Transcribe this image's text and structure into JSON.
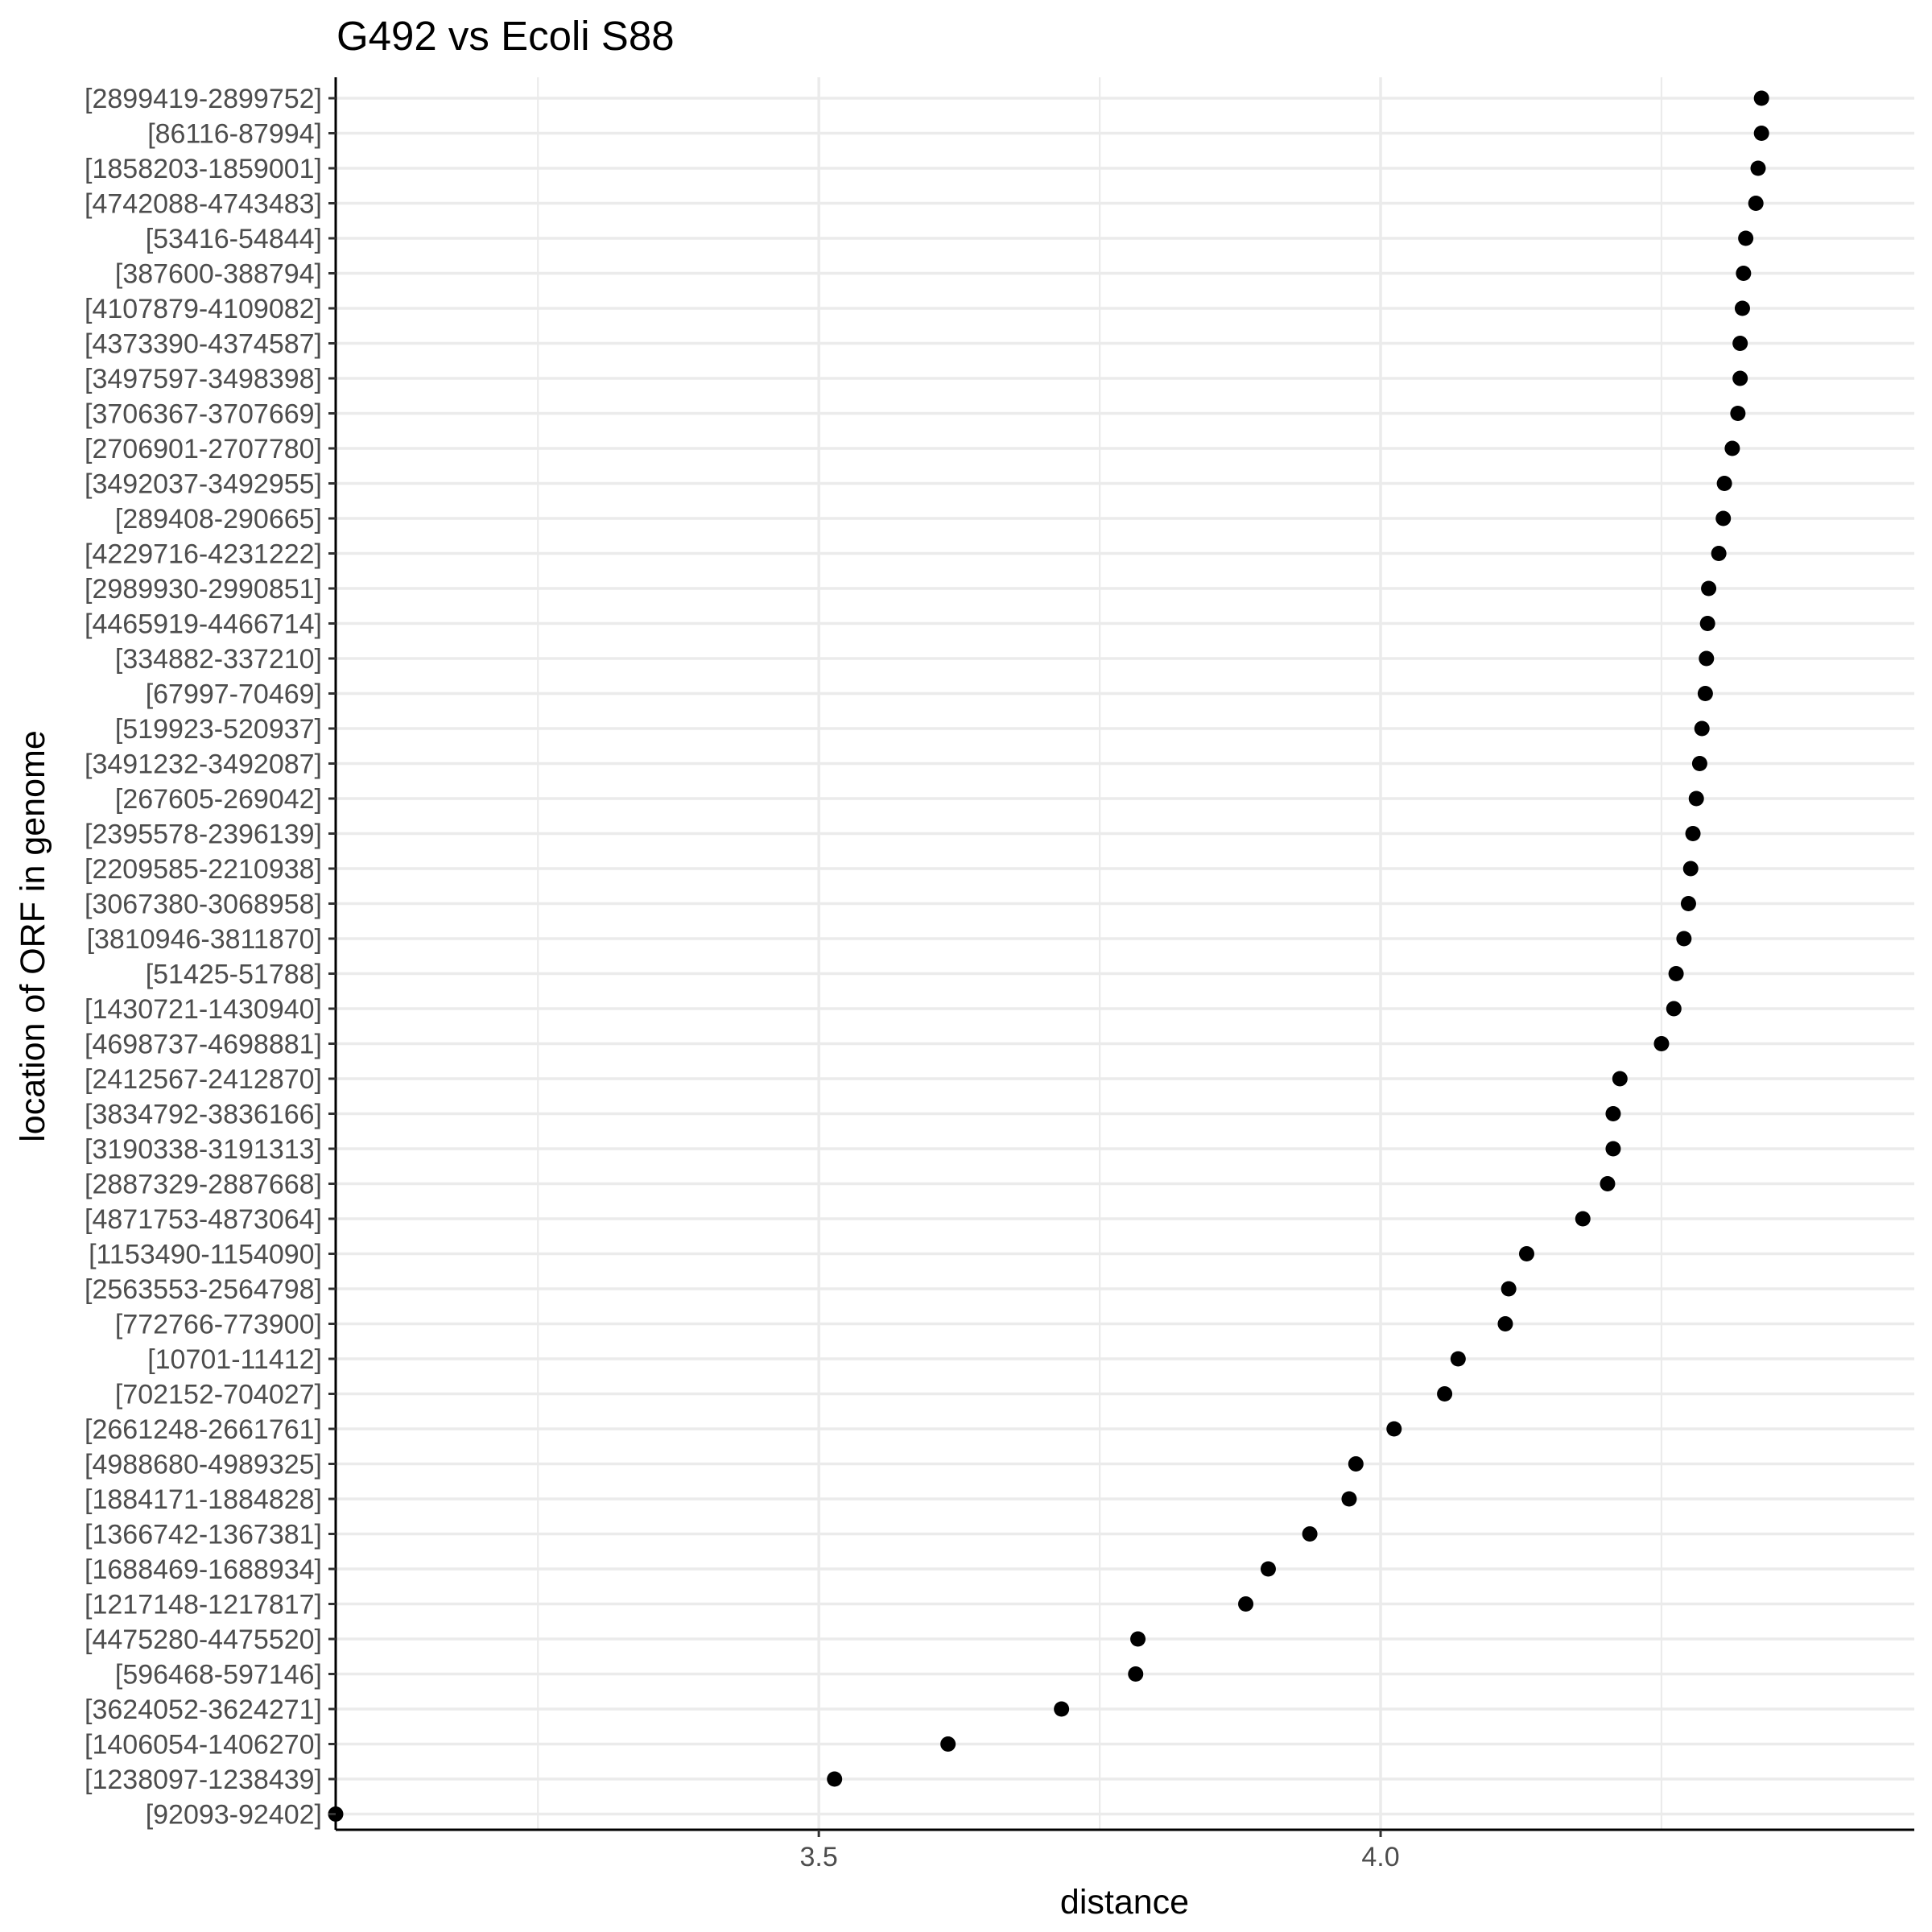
{
  "chart_data": {
    "type": "scatter",
    "title": "G492 vs Ecoli S88",
    "xlabel": "distance",
    "ylabel": "location of ORF in genome",
    "xlim": [
      3.07,
      4.475
    ],
    "x_ticks": [
      3.5,
      4.0
    ],
    "x_tick_labels": [
      "3.5",
      "4.0"
    ],
    "grid": true,
    "point_color": "#000000",
    "grid_color": "#ebebeb",
    "categories": [
      "[2899419-2899752]",
      "[86116-87994]",
      "[1858203-1859001]",
      "[4742088-4743483]",
      "[53416-54844]",
      "[387600-388794]",
      "[4107879-4109082]",
      "[4373390-4374587]",
      "[3497597-3498398]",
      "[3706367-3707669]",
      "[2706901-2707780]",
      "[3492037-3492955]",
      "[289408-290665]",
      "[4229716-4231222]",
      "[2989930-2990851]",
      "[4465919-4466714]",
      "[334882-337210]",
      "[67997-70469]",
      "[519923-520937]",
      "[3491232-3492087]",
      "[267605-269042]",
      "[2395578-2396139]",
      "[2209585-2210938]",
      "[3067380-3068958]",
      "[3810946-3811870]",
      "[51425-51788]",
      "[1430721-1430940]",
      "[4698737-4698881]",
      "[2412567-2412870]",
      "[3834792-3836166]",
      "[3190338-3191313]",
      "[2887329-2887668]",
      "[4871753-4873064]",
      "[1153490-1154090]",
      "[2563553-2564798]",
      "[772766-773900]",
      "[10701-11412]",
      "[702152-704027]",
      "[2661248-2661761]",
      "[4988680-4989325]",
      "[1884171-1884828]",
      "[1366742-1367381]",
      "[1688469-1688934]",
      "[1217148-1217817]",
      "[4475280-4475520]",
      "[596468-597146]",
      "[3624052-3624271]",
      "[1406054-1406270]",
      "[1238097-1238439]",
      "[92093-92402]"
    ],
    "values": [
      4.339,
      4.339,
      4.336,
      4.334,
      4.325,
      4.323,
      4.322,
      4.32,
      4.32,
      4.318,
      4.313,
      4.306,
      4.305,
      4.301,
      4.292,
      4.291,
      4.29,
      4.289,
      4.286,
      4.284,
      4.281,
      4.278,
      4.276,
      4.274,
      4.27,
      4.263,
      4.261,
      4.25,
      4.213,
      4.207,
      4.207,
      4.202,
      4.18,
      4.13,
      4.114,
      4.111,
      4.069,
      4.057,
      4.012,
      3.978,
      3.972,
      3.937,
      3.9,
      3.88,
      3.784,
      3.782,
      3.716,
      3.615,
      3.514,
      3.07
    ]
  }
}
